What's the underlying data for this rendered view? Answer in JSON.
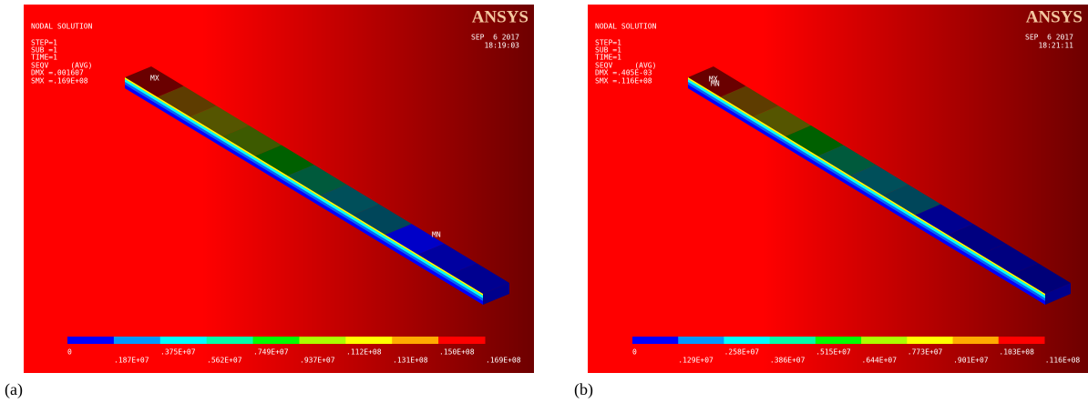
{
  "panels": [
    {
      "caption": "(a)",
      "header": [
        "NODAL SOLUTION",
        "STEP=1",
        "SUB =1",
        "TIME=1",
        "SEQV     (AVG)",
        "DMX =.001607",
        "SMX =.169E+08"
      ],
      "logo": "ANSYS",
      "date": "SEP  6 2017",
      "time": "18:19:03",
      "max_label": "MX",
      "min_label": "MN",
      "legend_labels": [
        "0",
        ".187E+07",
        ".375E+07",
        ".562E+07",
        ".749E+07",
        ".937E+07",
        ".112E+08",
        ".131E+08",
        ".150E+08",
        ".169E+08"
      ]
    },
    {
      "caption": "(b)",
      "header": [
        "NODAL SOLUTION",
        "STEP=1",
        "SUB =1",
        "TIME=1",
        "SEQV     (AVG)",
        "DMX =.405E-03",
        "SMX =.116E+08"
      ],
      "logo": "ANSYS",
      "date": "SEP  6 2017",
      "time": "18:21:11",
      "max_label": "MX",
      "min_label": "MN",
      "legend_labels": [
        "0",
        ".129E+07",
        ".258E+07",
        ".386E+07",
        ".515E+07",
        ".644E+07",
        ".773E+07",
        ".901E+07",
        ".103E+08",
        ".116E+08"
      ]
    }
  ]
}
